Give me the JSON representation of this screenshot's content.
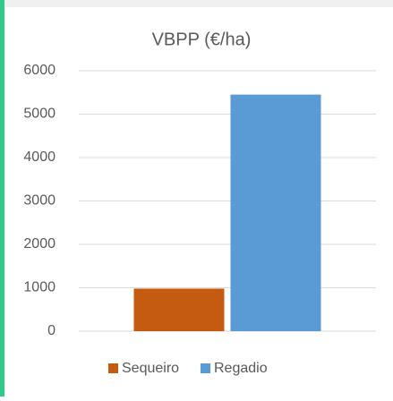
{
  "chart_data": {
    "type": "bar",
    "title": "VBPP (€/ha)",
    "categories": [
      null
    ],
    "series": [
      {
        "name": "Sequeiro",
        "color": "#c55a11",
        "values": [
          980
        ]
      },
      {
        "name": "Regadio",
        "color": "#5b9bd5",
        "values": [
          5450
        ]
      }
    ],
    "ylim": [
      0,
      6000
    ],
    "yticks": [
      0,
      1000,
      2000,
      3000,
      4000,
      5000,
      6000
    ],
    "grid": true,
    "legend": "bottom"
  }
}
